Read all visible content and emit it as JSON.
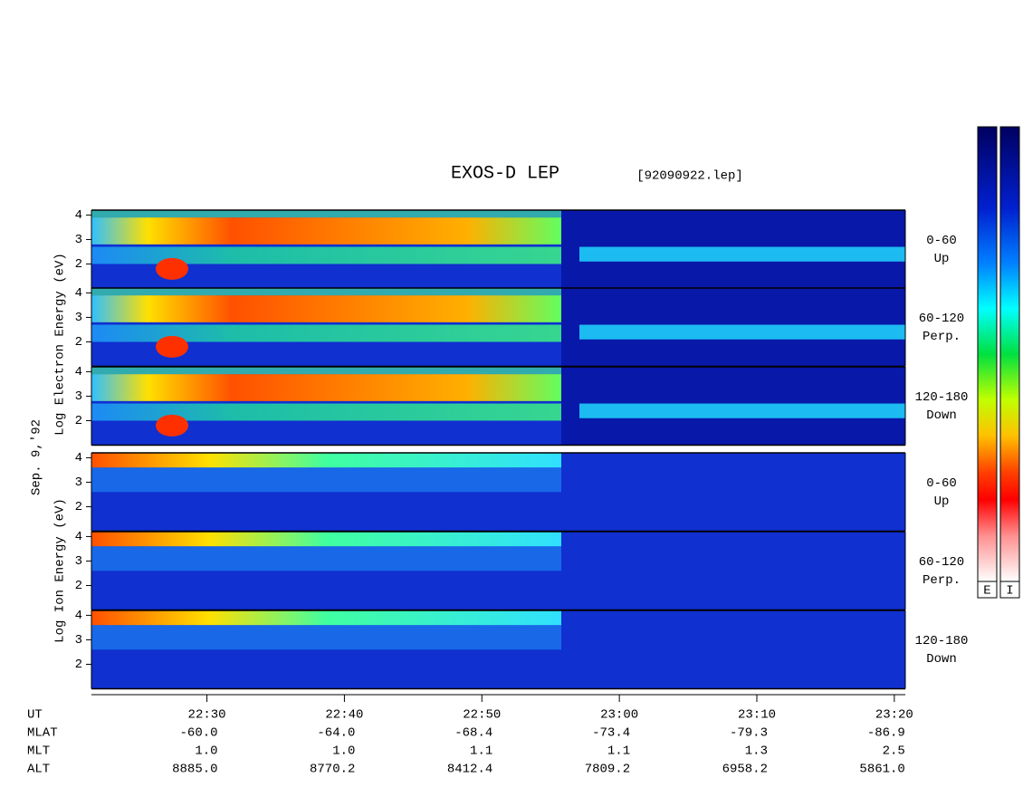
{
  "title": "EXOS-D LEP",
  "file": "[92090922.lep]",
  "date_label": "Sep. 9,'92",
  "electron_label": "Log Electron Energy (eV)",
  "ion_label": "Log Ion Energy (eV)",
  "panels": [
    {
      "angle": "0-60",
      "direction": "Up"
    },
    {
      "angle": "60-120",
      "direction": "Perp."
    },
    {
      "angle": "120-180",
      "direction": "Down"
    },
    {
      "angle": "0-60",
      "direction": "Up"
    },
    {
      "angle": "60-120",
      "direction": "Perp."
    },
    {
      "angle": "120-180",
      "direction": "Down"
    }
  ],
  "ylim": [
    1,
    4.2
  ],
  "yticks": [
    2,
    3,
    4
  ],
  "xlim": [
    1341.6,
    1400.8
  ],
  "xticks": [
    {
      "value": 1350,
      "label": "22:30"
    },
    {
      "value": 1360,
      "label": "22:40"
    },
    {
      "value": 1370,
      "label": "22:50"
    },
    {
      "value": 1380,
      "label": "23:00"
    },
    {
      "value": 1390,
      "label": "23:10"
    },
    {
      "value": 1400,
      "label": "23:20"
    }
  ],
  "orbit_table": {
    "headers": [
      "UT",
      "MLAT",
      "MLT",
      "ALT"
    ],
    "rows": [
      [
        "-60.0",
        "-64.0",
        "-68.4",
        "-73.4",
        "-79.3",
        "-86.9"
      ],
      [
        "1.0",
        "1.0",
        "1.1",
        "1.1",
        "1.3",
        "2.5"
      ],
      [
        "8885.0",
        "8770.2",
        "8412.4",
        "7809.2",
        "6958.2",
        "5861.0"
      ]
    ]
  },
  "colorbars": [
    "E",
    "I"
  ]
}
